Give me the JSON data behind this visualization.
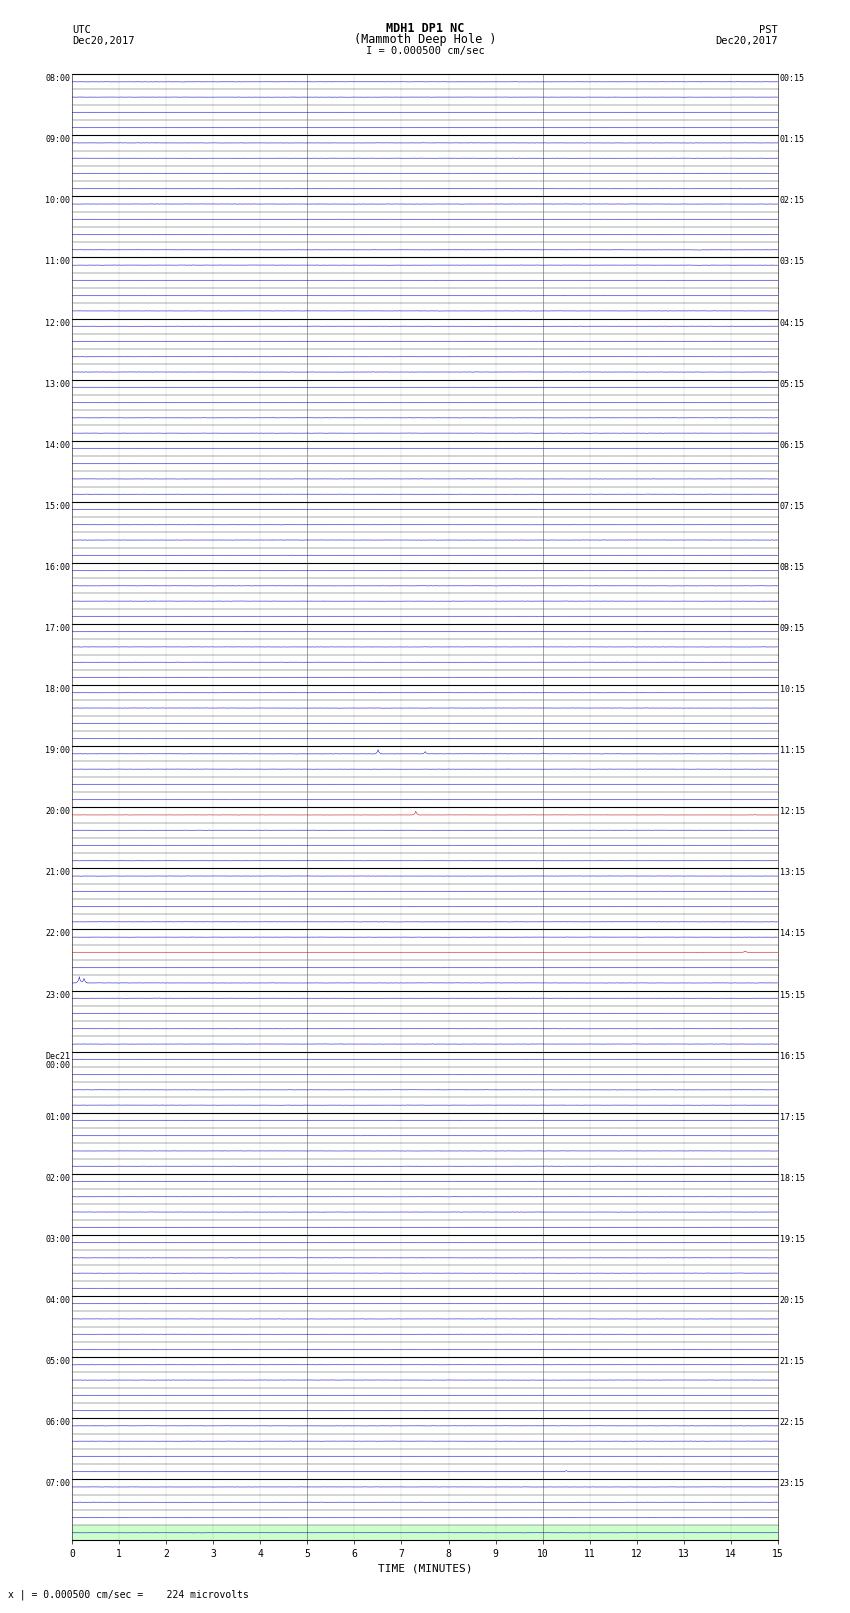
{
  "title_line1": "MDH1 DP1 NC",
  "title_line2": "(Mammoth Deep Hole )",
  "scale_label": "I = 0.000500 cm/sec",
  "left_header_line1": "UTC",
  "left_header_line2": "Dec20,2017",
  "right_header_line1": "PST",
  "right_header_line2": "Dec20,2017",
  "footer_note": "x | = 0.000500 cm/sec =    224 microvolts",
  "xlabel": "TIME (MINUTES)",
  "num_rows": 96,
  "mins_per_row": 15,
  "left_times_utc": [
    "08:00",
    "",
    "",
    "",
    "09:00",
    "",
    "",
    "",
    "10:00",
    "",
    "",
    "",
    "11:00",
    "",
    "",
    "",
    "12:00",
    "",
    "",
    "",
    "13:00",
    "",
    "",
    "",
    "14:00",
    "",
    "",
    "",
    "15:00",
    "",
    "",
    "",
    "16:00",
    "",
    "",
    "",
    "17:00",
    "",
    "",
    "",
    "18:00",
    "",
    "",
    "",
    "19:00",
    "",
    "",
    "",
    "20:00",
    "",
    "",
    "",
    "21:00",
    "",
    "",
    "",
    "22:00",
    "",
    "",
    "",
    "23:00",
    "",
    "",
    "",
    "Dec21\n00:00",
    "",
    "",
    "",
    "01:00",
    "",
    "",
    "",
    "02:00",
    "",
    "",
    "",
    "03:00",
    "",
    "",
    "",
    "04:00",
    "",
    "",
    "",
    "05:00",
    "",
    "",
    "",
    "06:00",
    "",
    "",
    "",
    "07:00",
    "",
    "",
    ""
  ],
  "right_times_pst": [
    "00:15",
    "",
    "",
    "",
    "01:15",
    "",
    "",
    "",
    "02:15",
    "",
    "",
    "",
    "03:15",
    "",
    "",
    "",
    "04:15",
    "",
    "",
    "",
    "05:15",
    "",
    "",
    "",
    "06:15",
    "",
    "",
    "",
    "07:15",
    "",
    "",
    "",
    "08:15",
    "",
    "",
    "",
    "09:15",
    "",
    "",
    "",
    "10:15",
    "",
    "",
    "",
    "11:15",
    "",
    "",
    "",
    "12:15",
    "",
    "",
    "",
    "13:15",
    "",
    "",
    "",
    "14:15",
    "",
    "",
    "",
    "15:15",
    "",
    "",
    "",
    "16:15",
    "",
    "",
    "",
    "17:15",
    "",
    "",
    "",
    "18:15",
    "",
    "",
    "",
    "19:15",
    "",
    "",
    "",
    "20:15",
    "",
    "",
    "",
    "21:15",
    "",
    "",
    "",
    "22:15",
    "",
    "",
    "",
    "23:15",
    "",
    "",
    ""
  ],
  "bg_color": "#ffffff",
  "grid_major_color": "#333333",
  "grid_hour_color": "#000000",
  "grid_minor_color": "#999999",
  "trace_color_blue": "#0000cc",
  "trace_color_red": "#cc0000",
  "noise_amplitude": 0.008,
  "event_spikes": [
    {
      "row": 44,
      "minute": 6.5,
      "amplitude": 0.55,
      "color": "#cc0000"
    },
    {
      "row": 44,
      "minute": 7.5,
      "amplitude": 0.3,
      "color": "#0000cc"
    },
    {
      "row": 44,
      "minute": 10.0,
      "amplitude": 0.12,
      "color": "#0000cc"
    },
    {
      "row": 48,
      "minute": 7.3,
      "amplitude": 0.5,
      "color": "#cc0000"
    },
    {
      "row": 57,
      "minute": 14.3,
      "amplitude": 0.18,
      "color": "#cc0000"
    },
    {
      "row": 59,
      "minute": 0.15,
      "amplitude": 0.8,
      "color": "#0000cc"
    },
    {
      "row": 59,
      "minute": 0.25,
      "amplitude": 0.6,
      "color": "#0000cc"
    },
    {
      "row": 91,
      "minute": 10.5,
      "amplitude": 0.15,
      "color": "#0000cc"
    }
  ],
  "last_row_bg": "#ccffcc",
  "figwidth": 8.5,
  "figheight": 16.13
}
